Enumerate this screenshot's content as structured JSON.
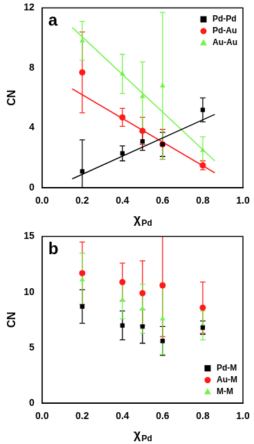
{
  "chart_data": [
    {
      "type": "scatter",
      "title": "a",
      "x_label": "χPd",
      "y_label": "CN",
      "xlim": [
        0,
        1
      ],
      "xticks": [
        {
          "value": 0,
          "label": "0.0"
        },
        0.2,
        0.4,
        0.6,
        0.8,
        {
          "value": 1,
          "label": "1.0"
        }
      ],
      "ylim": [
        0,
        12
      ],
      "yticks": [
        0,
        4,
        8,
        12
      ],
      "grid": false,
      "legend": "upper right",
      "series": [
        {
          "name": "Pd-Pd",
          "color": "#000000",
          "marker": "square",
          "x": [
            0.2,
            0.4,
            0.5,
            0.6,
            0.8
          ],
          "values": [
            1.1,
            2.3,
            3.1,
            2.9,
            5.2
          ],
          "errors": [
            2.1,
            0.5,
            0.6,
            0.8,
            0.8
          ],
          "fit": {
            "x": [
              0.15,
              0.86
            ],
            "values": [
              0.6,
              4.9
            ],
            "line_style": "solid"
          }
        },
        {
          "name": "Pd-Au",
          "color": "#ff1a1a",
          "marker": "circle",
          "x": [
            0.2,
            0.4,
            0.5,
            0.6,
            0.8
          ],
          "values": [
            7.7,
            4.7,
            3.8,
            2.9,
            1.5
          ],
          "errors": [
            2.7,
            0.6,
            0.9,
            1.0,
            0.3
          ],
          "fit": {
            "x": [
              0.15,
              0.86
            ],
            "values": [
              6.6,
              1.0
            ],
            "line_style": "solid"
          }
        },
        {
          "name": "Au-Au",
          "color": "#73f24a",
          "marker": "triangle",
          "x": [
            0.2,
            0.4,
            0.5,
            0.6,
            0.8
          ],
          "values": [
            9.8,
            7.6,
            6.1,
            6.8,
            2.5
          ],
          "errors": [
            1.3,
            1.3,
            2.3,
            4.9,
            0.9
          ],
          "fit": {
            "x": [
              0.15,
              0.86
            ],
            "values": [
              10.7,
              1.8
            ],
            "line_style": "solid"
          }
        }
      ]
    },
    {
      "type": "scatter",
      "title": "b",
      "x_label": "χPd",
      "y_label": "CN",
      "xlim": [
        0,
        1
      ],
      "xticks": [
        {
          "value": 0,
          "label": "0.0"
        },
        0.2,
        0.4,
        0.6,
        0.8,
        {
          "value": 1,
          "label": "1.0"
        }
      ],
      "ylim": [
        0,
        15
      ],
      "yticks": [
        0,
        5,
        10,
        15
      ],
      "grid": false,
      "legend": "lower right",
      "series": [
        {
          "name": "Pd-M",
          "color": "#000000",
          "marker": "square",
          "x": [
            0.2,
            0.4,
            0.5,
            0.6,
            0.8
          ],
          "values": [
            8.7,
            7.0,
            6.9,
            5.6,
            6.8
          ],
          "errors": [
            1.5,
            1.3,
            1.5,
            1.3,
            0.6
          ]
        },
        {
          "name": "Au-M",
          "color": "#ff1a1a",
          "marker": "circle",
          "x": [
            0.2,
            0.4,
            0.5,
            0.6,
            0.8
          ],
          "values": [
            11.7,
            10.9,
            9.9,
            10.6,
            8.6
          ],
          "errors": [
            2.8,
            1.7,
            2.9,
            4.6,
            2.3
          ]
        },
        {
          "name": "M-M",
          "color": "#73f24a",
          "marker": "triangle",
          "x": [
            0.2,
            0.4,
            0.5,
            0.6,
            0.8
          ],
          "values": [
            11.1,
            9.3,
            8.5,
            7.6,
            7.0
          ],
          "errors": [
            2.4,
            1.7,
            2.2,
            3.2,
            1.3
          ]
        }
      ]
    }
  ]
}
